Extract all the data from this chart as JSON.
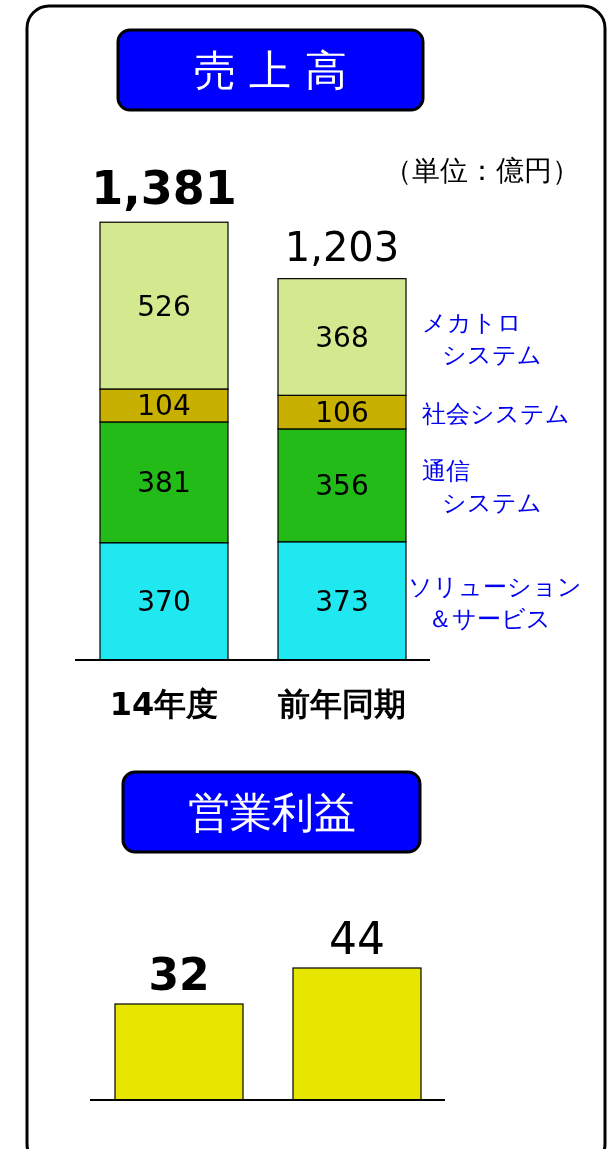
{
  "chart_data": [
    {
      "type": "bar",
      "title": "売 上 高",
      "annotations": [
        "（単位：億円）"
      ],
      "categories": [
        "14年度",
        "前年同期"
      ],
      "stacked": true,
      "data_labels": true,
      "legend": "right",
      "totals": [
        "1,381",
        "1,203"
      ],
      "series": [
        {
          "name": "ソリューション＆サービス",
          "color": "#20e8f0",
          "values": [
            370,
            373
          ]
        },
        {
          "name": "通信システム",
          "color": "#22bb18",
          "values": [
            381,
            356
          ]
        },
        {
          "name": "社会システム",
          "color": "#c8b000",
          "values": [
            104,
            106
          ]
        },
        {
          "name": "メカトロシステム",
          "color": "#d4e890",
          "values": [
            526,
            368
          ]
        }
      ]
    },
    {
      "type": "bar",
      "title": "営業利益",
      "categories": [
        null,
        null
      ],
      "data_labels": true,
      "values": [
        32,
        44
      ],
      "color": "#e6e600"
    }
  ]
}
